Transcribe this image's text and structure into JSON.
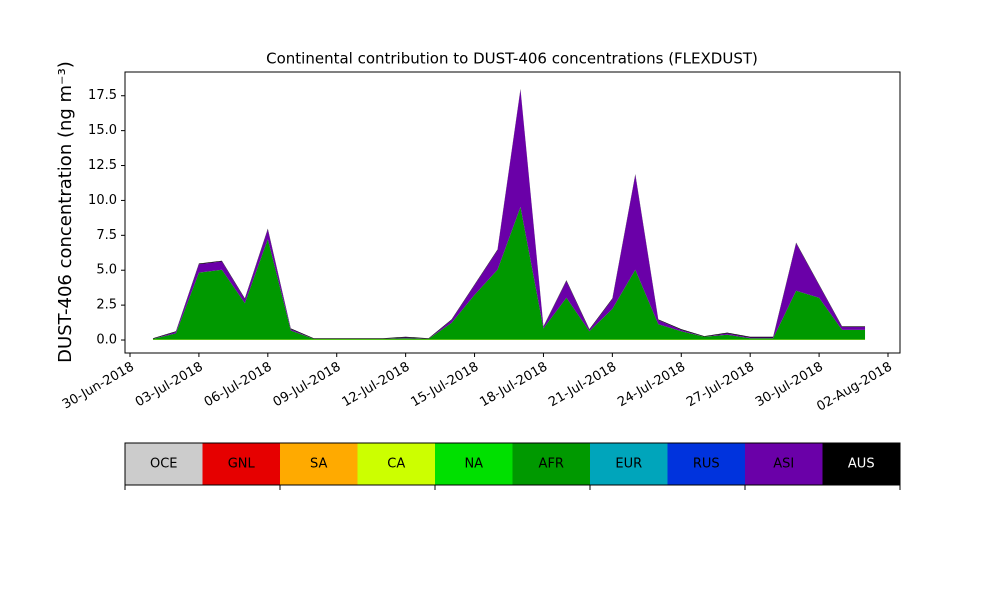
{
  "chart_data": {
    "type": "stacked_area",
    "title": "Continental contribution to DUST-406 concentrations (FLEXDUST)",
    "y_label": "DUST-406 concentration (ng m⁻³)",
    "x": [
      "01-Jul-2018",
      "02-Jul-2018",
      "03-Jul-2018",
      "04-Jul-2018",
      "05-Jul-2018",
      "06-Jul-2018",
      "07-Jul-2018",
      "08-Jul-2018",
      "09-Jul-2018",
      "10-Jul-2018",
      "11-Jul-2018",
      "12-Jul-2018",
      "13-Jul-2018",
      "14-Jul-2018",
      "15-Jul-2018",
      "16-Jul-2018",
      "17-Jul-2018",
      "18-Jul-2018",
      "19-Jul-2018",
      "20-Jul-2018",
      "21-Jul-2018",
      "22-Jul-2018",
      "23-Jul-2018",
      "24-Jul-2018",
      "25-Jul-2018",
      "26-Jul-2018",
      "27-Jul-2018",
      "28-Jul-2018",
      "29-Jul-2018",
      "30-Jul-2018",
      "31-Jul-2018",
      "01-Aug-2018"
    ],
    "xlim": [
      "30-Jun-2018",
      "02-Aug-2018"
    ],
    "xticks": [
      "30-Jun-2018",
      "03-Jul-2018",
      "06-Jul-2018",
      "09-Jul-2018",
      "12-Jul-2018",
      "15-Jul-2018",
      "18-Jul-2018",
      "21-Jul-2018",
      "24-Jul-2018",
      "27-Jul-2018",
      "30-Jul-2018",
      "02-Aug-2018"
    ],
    "ylim": [
      -0.93,
      19.2
    ],
    "yticks": [
      {
        "value": 0,
        "label": "0.0"
      },
      2.5,
      {
        "value": 5,
        "label": "5.0"
      },
      7.5,
      {
        "value": 10,
        "label": "10.0"
      },
      12.5,
      {
        "value": 15,
        "label": "15.0"
      },
      17.5
    ],
    "series": [
      {
        "name": "OCE",
        "color": "#cccccc",
        "values": [
          0,
          0,
          0,
          0,
          0,
          0,
          0,
          0,
          0,
          0,
          0,
          0,
          0,
          0,
          0,
          0,
          0,
          0,
          0,
          0,
          0,
          0,
          0,
          0,
          0,
          0,
          0,
          0,
          0,
          0,
          0,
          0
        ]
      },
      {
        "name": "GNL",
        "color": "#e60000",
        "values": [
          0,
          0,
          0,
          0,
          0,
          0,
          0,
          0,
          0,
          0,
          0,
          0,
          0,
          0,
          0,
          0,
          0,
          0,
          0,
          0,
          0,
          0,
          0,
          0,
          0,
          0,
          0,
          0,
          0,
          0,
          0,
          0
        ]
      },
      {
        "name": "SA",
        "color": "#ffaa00",
        "values": [
          0,
          0,
          0,
          0,
          0,
          0,
          0,
          0,
          0,
          0,
          0,
          0,
          0,
          0,
          0,
          0,
          0,
          0,
          0,
          0,
          0,
          0,
          0,
          0,
          0,
          0,
          0,
          0,
          0,
          0,
          0,
          0
        ]
      },
      {
        "name": "CA",
        "color": "#ccff00",
        "values": [
          0.03,
          0.03,
          0.03,
          0.03,
          0.03,
          0.03,
          0.03,
          0.03,
          0.03,
          0.03,
          0.03,
          0.03,
          0.03,
          0.03,
          0.03,
          0.03,
          0.03,
          0.03,
          0.03,
          0.03,
          0.03,
          0.03,
          0.03,
          0.03,
          0.03,
          0.03,
          0.03,
          0.03,
          0.03,
          0.03,
          0.03,
          0.03
        ]
      },
      {
        "name": "NA",
        "color": "#00e000",
        "values": [
          0,
          0,
          0,
          0,
          0,
          0,
          0,
          0,
          0,
          0,
          0,
          0,
          0,
          0,
          0,
          0,
          0,
          0,
          0,
          0,
          0,
          0,
          0,
          0,
          0,
          0,
          0,
          0,
          0,
          0,
          0,
          0
        ]
      },
      {
        "name": "AFR",
        "color": "#009900",
        "values": [
          0.05,
          0.45,
          4.8,
          5.0,
          2.6,
          7.2,
          0.65,
          0.05,
          0.05,
          0.05,
          0.05,
          0.1,
          0.05,
          1.2,
          3.2,
          5.0,
          9.5,
          0.8,
          3.0,
          0.6,
          2.2,
          5.0,
          1.1,
          0.6,
          0.2,
          0.35,
          0.1,
          0.1,
          3.5,
          3.0,
          0.7,
          0.7
        ]
      },
      {
        "name": "EUR",
        "color": "#00a5bb",
        "values": [
          0,
          0,
          0,
          0,
          0,
          0,
          0,
          0,
          0,
          0,
          0,
          0,
          0,
          0,
          0,
          0,
          0,
          0,
          0,
          0,
          0,
          0,
          0,
          0,
          0,
          0,
          0,
          0,
          0,
          0,
          0,
          0
        ]
      },
      {
        "name": "RUS",
        "color": "#0033dd",
        "values": [
          0,
          0,
          0,
          0,
          0,
          0,
          0,
          0,
          0,
          0,
          0,
          0,
          0,
          0,
          0,
          0,
          0,
          0,
          0,
          0,
          0,
          0,
          0,
          0,
          0,
          0,
          0,
          0,
          0,
          0,
          0,
          0
        ]
      },
      {
        "name": "ASI",
        "color": "#6a00a8",
        "values": [
          0,
          0.1,
          0.6,
          0.6,
          0.3,
          0.7,
          0.1,
          0,
          0,
          0,
          0,
          0.05,
          0,
          0.2,
          0.7,
          1.4,
          8.4,
          0.1,
          1.2,
          0.1,
          0.7,
          6.8,
          0.3,
          0.1,
          0,
          0.1,
          0.05,
          0.05,
          3.4,
          0.9,
          0.2,
          0.2
        ]
      },
      {
        "name": "AUS",
        "color": "#000000",
        "values": [
          0.05,
          0.05,
          0.05,
          0.05,
          0.05,
          0.05,
          0.05,
          0.05,
          0.05,
          0.05,
          0.05,
          0.05,
          0.05,
          0.05,
          0.05,
          0.05,
          0.05,
          0.05,
          0.05,
          0.05,
          0.05,
          0.05,
          0.05,
          0.05,
          0.05,
          0.05,
          0.05,
          0.05,
          0.05,
          0.05,
          0.05,
          0.05
        ]
      }
    ]
  }
}
